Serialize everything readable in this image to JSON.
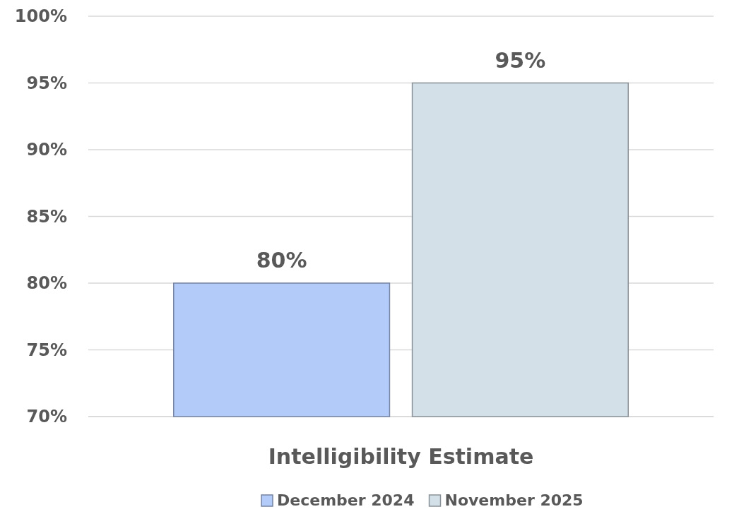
{
  "chart_data": {
    "type": "bar",
    "categories": [
      "Intelligibility Estimate"
    ],
    "series": [
      {
        "name": "December 2024",
        "color": "#b3cbf8",
        "values": [
          80
        ],
        "value_labels": [
          "80%"
        ]
      },
      {
        "name": "November 2025",
        "color": "#d3e0e8",
        "values": [
          95
        ],
        "value_labels": [
          "95%"
        ]
      }
    ],
    "ylim": [
      70,
      100
    ],
    "yticks": [
      {
        "value": 70,
        "label": "70%"
      },
      {
        "value": 75,
        "label": "75%"
      },
      {
        "value": 80,
        "label": "80%"
      },
      {
        "value": 85,
        "label": "85%"
      },
      {
        "value": 90,
        "label": "90%"
      },
      {
        "value": 95,
        "label": "95%"
      },
      {
        "value": 100,
        "label": "100%"
      }
    ],
    "grid": "y",
    "legend": "bottom"
  }
}
